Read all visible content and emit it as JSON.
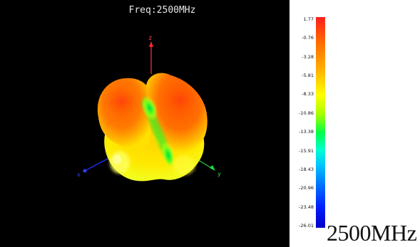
{
  "view": {
    "title": "Freq:2500MHz",
    "background": "#000000",
    "axes": {
      "z_label": "z",
      "x_label": "x",
      "y_label": "y"
    }
  },
  "colorbar": {
    "ticks": [
      "1.77",
      "-0.76",
      "-3.28",
      "-5.81",
      "-8.33",
      "-10.86",
      "-13.38",
      "-15.91",
      "-18.43",
      "-20.96",
      "-23.48",
      "-26.01"
    ],
    "max_color": "#ff1e1e",
    "min_color": "#0000c8"
  },
  "caption": {
    "freq_label": "2500MHz"
  }
}
